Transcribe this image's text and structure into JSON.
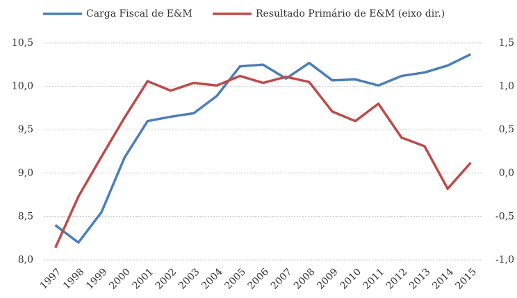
{
  "chart_data": {
    "type": "line",
    "categories": [
      "1997",
      "1998",
      "1999",
      "2000",
      "2001",
      "2002",
      "2003",
      "2004",
      "2005",
      "2006",
      "2007",
      "2008",
      "2009",
      "2010",
      "2011",
      "2012",
      "2013",
      "2014",
      "2015"
    ],
    "series": [
      {
        "name": "Carga Fiscal de E&M",
        "color": "#4a7ebb",
        "axis": "y",
        "values": [
          8.4,
          8.2,
          8.55,
          9.18,
          9.6,
          9.65,
          9.69,
          9.89,
          10.23,
          10.25,
          10.09,
          10.27,
          10.07,
          10.08,
          10.01,
          10.12,
          10.16,
          10.24,
          10.37
        ]
      },
      {
        "name": "Resultado Primário de E&M (eixo dir.)",
        "color": "#be4b48",
        "axis": "y2",
        "values": [
          -0.86,
          -0.27,
          0.19,
          0.64,
          1.06,
          0.95,
          1.04,
          1.01,
          1.12,
          1.04,
          1.11,
          1.05,
          0.71,
          0.6,
          0.8,
          0.41,
          0.31,
          -0.18,
          0.12
        ]
      }
    ],
    "ylim": [
      8,
      10.5
    ],
    "yticks": [
      {
        "value": 8,
        "label": "8,0"
      },
      {
        "value": 8.5,
        "label": "8,5"
      },
      {
        "value": 9,
        "label": "9,0"
      },
      {
        "value": 9.5,
        "label": "9,5"
      },
      {
        "value": 10,
        "label": "10,0"
      },
      {
        "value": 10.5,
        "label": "10,5"
      }
    ],
    "y2lim": [
      -1,
      1.5
    ],
    "y2ticks": [
      {
        "value": -1,
        "label": "-1,0"
      },
      {
        "value": -0.5,
        "label": "-0,5"
      },
      {
        "value": 0,
        "label": "0,0"
      },
      {
        "value": 0.5,
        "label": "0,5"
      },
      {
        "value": 1,
        "label": "1,0"
      },
      {
        "value": 1.5,
        "label": "1,5"
      }
    ],
    "grid": true
  }
}
